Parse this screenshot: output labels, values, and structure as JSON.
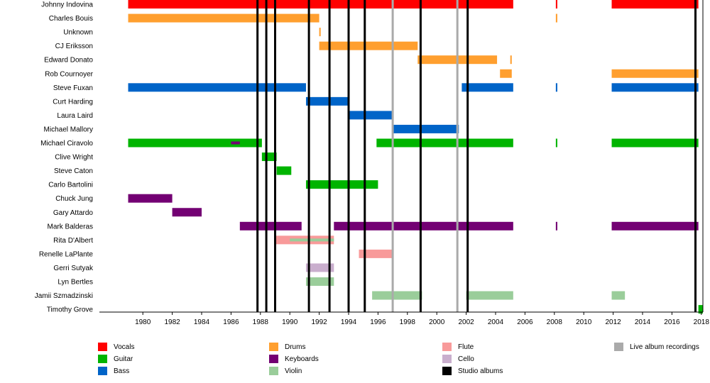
{
  "chart_data": {
    "type": "timeline",
    "x_range": [
      1976,
      2018
    ],
    "x_ticks": [
      1980,
      1982,
      1984,
      1986,
      1988,
      1990,
      1992,
      1994,
      1996,
      1998,
      2000,
      2002,
      2004,
      2006,
      2008,
      2010,
      2012,
      2014,
      2016,
      2018
    ],
    "colors": {
      "vocals": "#ff0000",
      "drums": "#ff9f2f",
      "flute": "#f89a9a",
      "live": "#aaaaaa",
      "guitar": "#00b400",
      "keyboards": "#730073",
      "cello": "#c9aecd",
      "bass": "#0064c8",
      "violin": "#9acd9a",
      "studio": "#000000"
    },
    "legend": [
      {
        "role": "vocals",
        "label": "Vocals"
      },
      {
        "role": "guitar",
        "label": "Guitar"
      },
      {
        "role": "bass",
        "label": "Bass"
      },
      {
        "role": "drums",
        "label": "Drums"
      },
      {
        "role": "keyboards",
        "label": "Keyboards"
      },
      {
        "role": "violin",
        "label": "Violin"
      },
      {
        "role": "flute",
        "label": "Flute"
      },
      {
        "role": "cello",
        "label": "Cello"
      },
      {
        "role": "studio",
        "label": "Studio albums"
      },
      {
        "role": "live",
        "label": "Live album recordings"
      }
    ],
    "members": [
      {
        "name": "Johnny Indovina",
        "bars": [
          {
            "role": "vocals",
            "start": 1979.0,
            "end": 2005.2
          },
          {
            "role": "vocals",
            "start": 2008.1,
            "end": 2008.2
          },
          {
            "role": "vocals",
            "start": 2011.9,
            "end": 2017.8
          }
        ]
      },
      {
        "name": "Charles Bouis",
        "bars": [
          {
            "role": "drums",
            "start": 1979.0,
            "end": 1992.0
          },
          {
            "role": "drums",
            "start": 2008.1,
            "end": 2008.2
          }
        ]
      },
      {
        "name": "Unknown",
        "bars": [
          {
            "role": "drums",
            "start": 1992.0,
            "end": 1992.1
          }
        ]
      },
      {
        "name": "CJ Eriksson",
        "bars": [
          {
            "role": "drums",
            "start": 1992.0,
            "end": 1998.7
          }
        ]
      },
      {
        "name": "Edward Donato",
        "bars": [
          {
            "role": "drums",
            "start": 1998.7,
            "end": 2004.1
          },
          {
            "role": "drums",
            "start": 2005.0,
            "end": 2005.1
          }
        ]
      },
      {
        "name": "Rob Cournoyer",
        "bars": [
          {
            "role": "drums",
            "start": 2004.3,
            "end": 2005.1
          },
          {
            "role": "drums",
            "start": 2011.9,
            "end": 2017.8
          }
        ]
      },
      {
        "name": "Steve Fuxan",
        "bars": [
          {
            "role": "bass",
            "start": 1979.0,
            "end": 1991.1
          },
          {
            "role": "bass",
            "start": 2001.7,
            "end": 2005.2
          },
          {
            "role": "bass",
            "start": 2008.1,
            "end": 2008.2
          },
          {
            "role": "bass",
            "start": 2011.9,
            "end": 2017.8
          }
        ]
      },
      {
        "name": "Curt Harding",
        "bars": [
          {
            "role": "bass",
            "start": 1991.1,
            "end": 1994.0
          }
        ]
      },
      {
        "name": "Laura Laird",
        "bars": [
          {
            "role": "bass",
            "start": 1994.0,
            "end": 1997.0
          }
        ]
      },
      {
        "name": "Michael Mallory",
        "bars": [
          {
            "role": "bass",
            "start": 1997.0,
            "end": 2001.5
          }
        ]
      },
      {
        "name": "Michael Ciravolo",
        "bars": [
          {
            "role": "guitar",
            "start": 1979.0,
            "end": 1988.1
          },
          {
            "role": "keyboards",
            "start": 1986.0,
            "end": 1986.6
          },
          {
            "role": "guitar",
            "start": 1995.9,
            "end": 2005.2
          },
          {
            "role": "guitar",
            "start": 2008.1,
            "end": 2008.2
          },
          {
            "role": "guitar",
            "start": 2011.9,
            "end": 2017.8
          }
        ]
      },
      {
        "name": "Clive Wright",
        "bars": [
          {
            "role": "guitar",
            "start": 1988.1,
            "end": 1989.1
          }
        ]
      },
      {
        "name": "Steve Caton",
        "bars": [
          {
            "role": "guitar",
            "start": 1989.1,
            "end": 1990.1
          }
        ]
      },
      {
        "name": "Carlo Bartolini",
        "bars": [
          {
            "role": "guitar",
            "start": 1991.1,
            "end": 1996.0
          }
        ]
      },
      {
        "name": "Chuck Jung",
        "bars": [
          {
            "role": "keyboards",
            "start": 1979.0,
            "end": 1982.0
          }
        ]
      },
      {
        "name": "Gary Attardo",
        "bars": [
          {
            "role": "keyboards",
            "start": 1982.0,
            "end": 1984.0
          }
        ]
      },
      {
        "name": "Mark Balderas",
        "bars": [
          {
            "role": "keyboards",
            "start": 1986.6,
            "end": 1990.8
          },
          {
            "role": "keyboards",
            "start": 1993.0,
            "end": 2005.2
          },
          {
            "role": "keyboards",
            "start": 2008.1,
            "end": 2008.2
          },
          {
            "role": "keyboards",
            "start": 2011.9,
            "end": 2017.8
          }
        ]
      },
      {
        "name": "Rita D'Albert",
        "bars": [
          {
            "role": "flute",
            "start": 1989.0,
            "end": 1993.0
          },
          {
            "role": "violin",
            "start": 1990.0,
            "end": 1993.0
          }
        ]
      },
      {
        "name": "Renelle LaPlante",
        "bars": [
          {
            "role": "flute",
            "start": 1994.7,
            "end": 1997.0
          }
        ]
      },
      {
        "name": "Gerri Sutyak",
        "bars": [
          {
            "role": "cello",
            "start": 1991.1,
            "end": 1993.0
          }
        ]
      },
      {
        "name": "Lyn Bertles",
        "bars": [
          {
            "role": "violin",
            "start": 1991.1,
            "end": 1993.0
          }
        ]
      },
      {
        "name": "Jamii Szmadzinski",
        "bars": [
          {
            "role": "violin",
            "start": 1995.6,
            "end": 1999.0
          },
          {
            "role": "violin",
            "start": 2002.0,
            "end": 2005.2
          },
          {
            "role": "violin",
            "start": 2011.9,
            "end": 2012.8
          }
        ]
      },
      {
        "name": "Timothy Grove",
        "bars": [
          {
            "role": "guitar",
            "start": 2017.8,
            "end": 2018.1
          }
        ]
      }
    ],
    "studio_albums": [
      1987.8,
      1988.4,
      1989.0,
      1991.3,
      1992.7,
      1994.0,
      1995.1,
      1998.9,
      2002.1,
      2017.6
    ],
    "live_recordings": [
      1997.0,
      2001.4
    ]
  }
}
